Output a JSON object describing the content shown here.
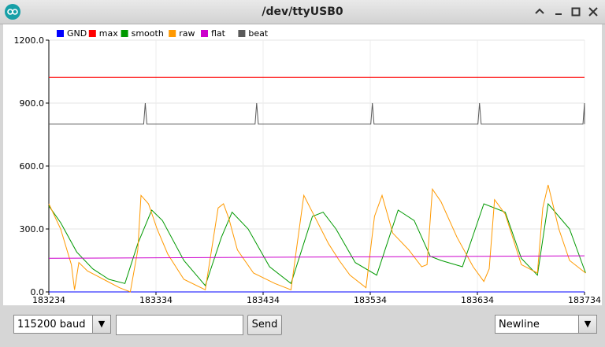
{
  "window": {
    "title": "/dev/ttyUSB0",
    "controls": [
      "minimize",
      "maximize",
      "close"
    ]
  },
  "bottom": {
    "baud_value": "115200 baud",
    "input_value": "",
    "send_label": "Send",
    "line_ending_value": "Newline"
  },
  "chart_data": {
    "type": "line",
    "title": "",
    "xlabel": "",
    "ylabel": "",
    "xlim": [
      183234,
      183734
    ],
    "ylim": [
      0,
      1200
    ],
    "x_ticks": [
      "183234",
      "183334",
      "183434",
      "183534",
      "183634",
      "183734"
    ],
    "y_ticks": [
      "0.0",
      "300.0",
      "600.0",
      "900.0",
      "1200.0"
    ],
    "grid": true,
    "legend_position": "top-left",
    "series": [
      {
        "name": "GND",
        "color": "#0000ff",
        "x": [
          183234,
          183734
        ],
        "values": [
          0,
          0
        ]
      },
      {
        "name": "max",
        "color": "#ff0000",
        "x": [
          183234,
          183734
        ],
        "values": [
          1023,
          1023
        ]
      },
      {
        "name": "smooth",
        "color": "#009900",
        "x": [
          183234,
          183245,
          183260,
          183275,
          183290,
          183305,
          183317,
          183330,
          183340,
          183360,
          183380,
          183395,
          183405,
          183420,
          183440,
          183460,
          183480,
          183490,
          183502,
          183520,
          183540,
          183560,
          183575,
          183590,
          183600,
          183620,
          183640,
          183660,
          183675,
          183690,
          183700,
          183720,
          183735
        ],
        "values": [
          410,
          330,
          190,
          110,
          60,
          40,
          230,
          390,
          340,
          150,
          30,
          260,
          380,
          300,
          120,
          40,
          360,
          380,
          300,
          140,
          80,
          390,
          340,
          170,
          150,
          120,
          420,
          380,
          160,
          80,
          420,
          300,
          90
        ]
      },
      {
        "name": "raw",
        "color": "#ff9900",
        "x": [
          183234,
          183245,
          183255,
          183258,
          183262,
          183270,
          183285,
          183300,
          183310,
          183317,
          183320,
          183327,
          183335,
          183345,
          183360,
          183380,
          183392,
          183397,
          183402,
          183410,
          183425,
          183445,
          183460,
          183465,
          183472,
          183480,
          183495,
          183505,
          183515,
          183530,
          183538,
          183545,
          183555,
          183570,
          183582,
          183587,
          183592,
          183600,
          183615,
          183630,
          183640,
          183645,
          183650,
          183660,
          183675,
          183690,
          183695,
          183700,
          183710,
          183720,
          183735
        ],
        "values": [
          420,
          300,
          130,
          10,
          140,
          100,
          60,
          20,
          0,
          200,
          460,
          420,
          300,
          180,
          60,
          10,
          400,
          420,
          350,
          200,
          90,
          40,
          10,
          200,
          460,
          380,
          230,
          150,
          80,
          20,
          360,
          460,
          280,
          200,
          120,
          130,
          490,
          430,
          260,
          120,
          50,
          110,
          440,
          370,
          130,
          90,
          400,
          510,
          300,
          150,
          90
        ]
      },
      {
        "name": "flat",
        "color": "#cc00cc",
        "x": [
          183234,
          183734
        ],
        "values": [
          160,
          172
        ]
      },
      {
        "name": "beat",
        "color": "#5a5a5a",
        "beats": [
          183324,
          183428,
          183536,
          183636,
          183734
        ],
        "base": 800,
        "peak": 900
      }
    ]
  }
}
